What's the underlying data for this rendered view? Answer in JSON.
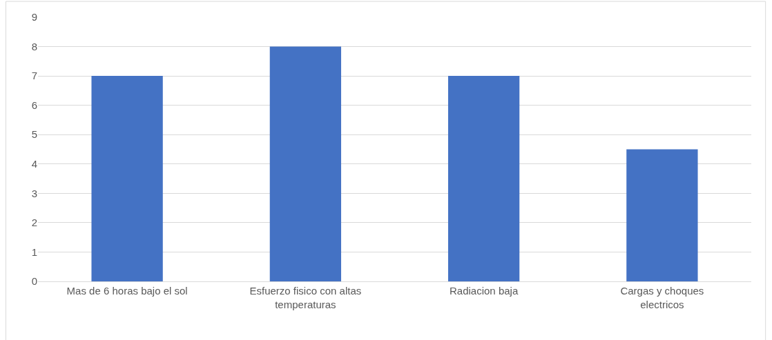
{
  "chart_data": {
    "type": "bar",
    "categories": [
      "Mas de 6 horas bajo el sol",
      "Esfuerzo fisico con altas temperaturas",
      "Radiacion baja",
      "Cargas y choques electricos"
    ],
    "values": [
      7,
      8,
      7,
      4.5
    ],
    "color": "#4472c4",
    "ylim": [
      0,
      9
    ],
    "yticks": [
      0,
      1,
      2,
      3,
      4,
      5,
      6,
      7,
      8,
      9
    ],
    "grid": "y"
  }
}
